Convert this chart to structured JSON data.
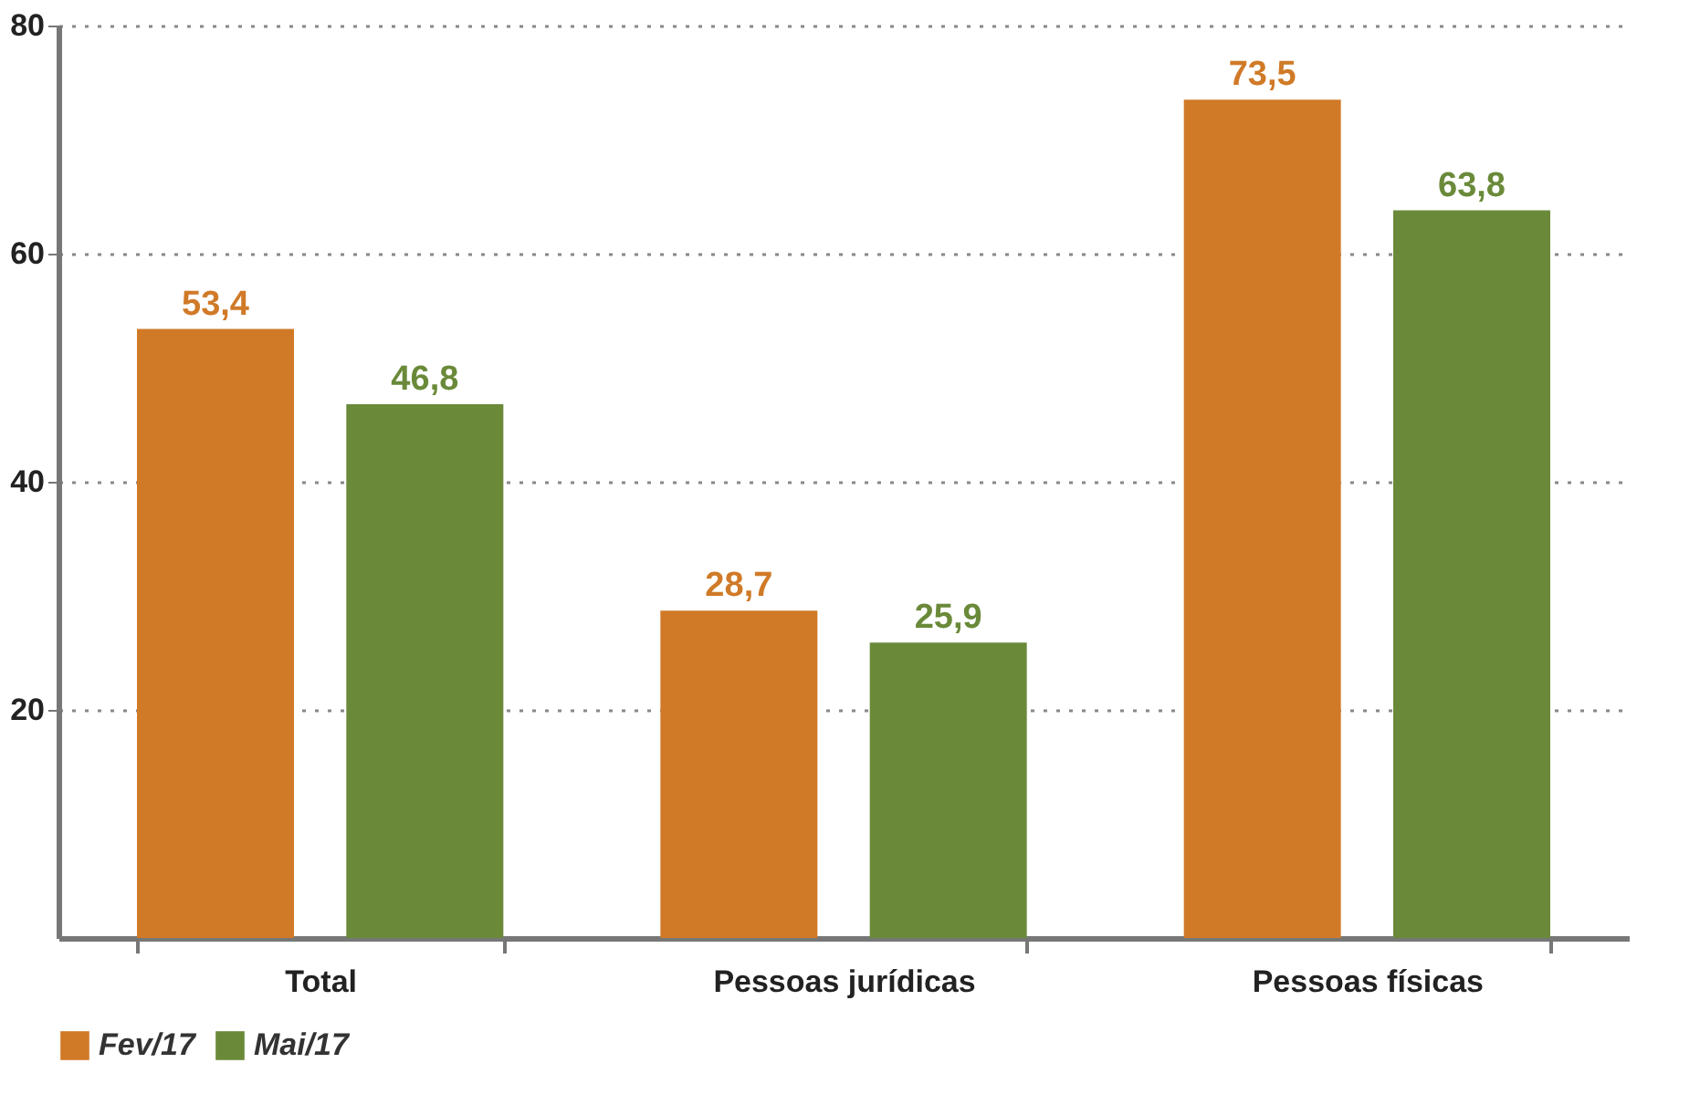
{
  "chart_data": {
    "type": "bar",
    "categories": [
      "Total",
      "Pessoas jurídicas",
      "Pessoas físicas"
    ],
    "series": [
      {
        "name": "Fev/17",
        "color": "#d07a28",
        "values": [
          53.4,
          28.7,
          73.5
        ],
        "value_labels": [
          "53,4",
          "28,7",
          "73,5"
        ]
      },
      {
        "name": "Mai/17",
        "color": "#6a8a3a",
        "values": [
          46.8,
          25.9,
          63.8
        ],
        "value_labels": [
          "46,8",
          "25,9",
          "63,8"
        ]
      }
    ],
    "ylim": [
      0,
      80
    ],
    "yticks": [
      20,
      40,
      60,
      80
    ],
    "grid": "y",
    "legend": "bottom"
  }
}
